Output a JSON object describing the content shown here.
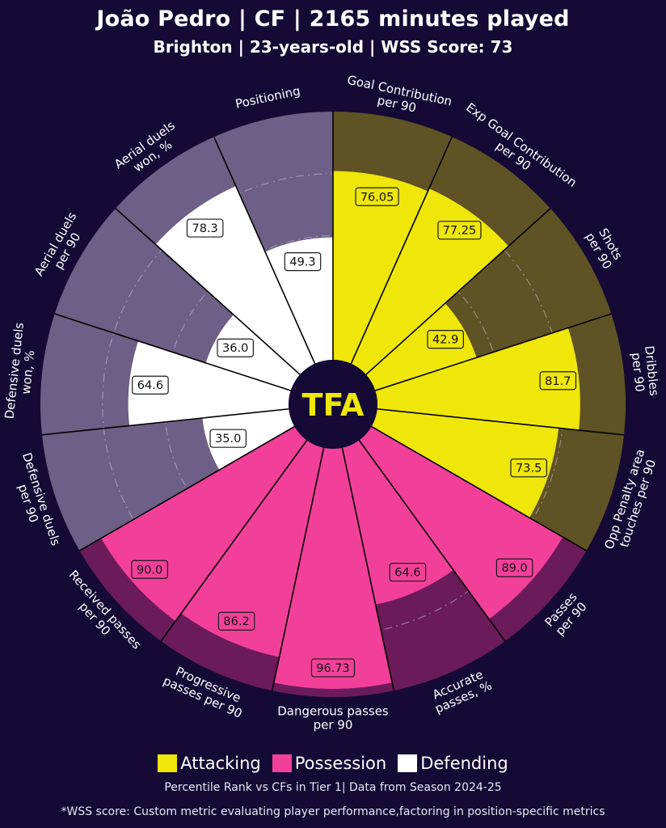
{
  "header": {
    "title": "João Pedro | CF | 2165 minutes played",
    "subtitle": "Brighton | 23-years-old | WSS Score: 73"
  },
  "logo_text": "TFA",
  "colors": {
    "background": "#140a35",
    "attacking": "#efe60a",
    "attacking_bg": "#5f5224",
    "possession": "#f2409a",
    "possession_bg": "#6b1b5a",
    "defending": "#ffffff",
    "defending_bg": "#6e5f86"
  },
  "legend": [
    {
      "label": "Attacking",
      "color": "#efe60a"
    },
    {
      "label": "Possession",
      "color": "#f2409a"
    },
    {
      "label": "Defending",
      "color": "#ffffff"
    }
  ],
  "footnote": "Percentile Rank vs CFs in Tier 1| Data from Season 2024-25",
  "wss_note": "*WSS score: Custom metric evaluating player performance,factoring in position-specific metrics",
  "chart_data": {
    "type": "polar-bar",
    "title": "João Pedro | CF | 2165 minutes played",
    "subtitle": "Brighton | 23-years-old | WSS Score: 73",
    "rlim": [
      0,
      100
    ],
    "legend_position": "bottom",
    "categories": [
      "Goal Contribution\nper 90",
      "Exp Goal Contribution\nper 90",
      "Shots\nper 90",
      "Dribbles\nper 90",
      "Opp Penalty area\ntouches per 90",
      "Passes\nper 90",
      "Accurate\npasses, %",
      "Dangerous passes\nper 90",
      "Progressive\npasses per 90",
      "Received passes\nper 90",
      "Defensive duels\nper 90",
      "Defensive duels\nwon, %",
      "Aerial duels\nper 90",
      "Aerial duels\nwon, %",
      "Positioning"
    ],
    "values": [
      76.05,
      77.25,
      42.9,
      81.7,
      73.5,
      89.0,
      64.6,
      96.73,
      86.2,
      90.0,
      35.0,
      64.6,
      36.0,
      78.3,
      49.3
    ],
    "value_labels": [
      "76.05",
      "77.25",
      "42.9",
      "81.7",
      "73.5",
      "89.0",
      "64.6",
      "96.73",
      "86.2",
      "90.0",
      "35.0",
      "64.6",
      "36.0",
      "78.3",
      "49.3"
    ],
    "groups": [
      "Attacking",
      "Attacking",
      "Attacking",
      "Attacking",
      "Attacking",
      "Possession",
      "Possession",
      "Possession",
      "Possession",
      "Possession",
      "Defending",
      "Defending",
      "Defending",
      "Defending",
      "Defending"
    ]
  }
}
